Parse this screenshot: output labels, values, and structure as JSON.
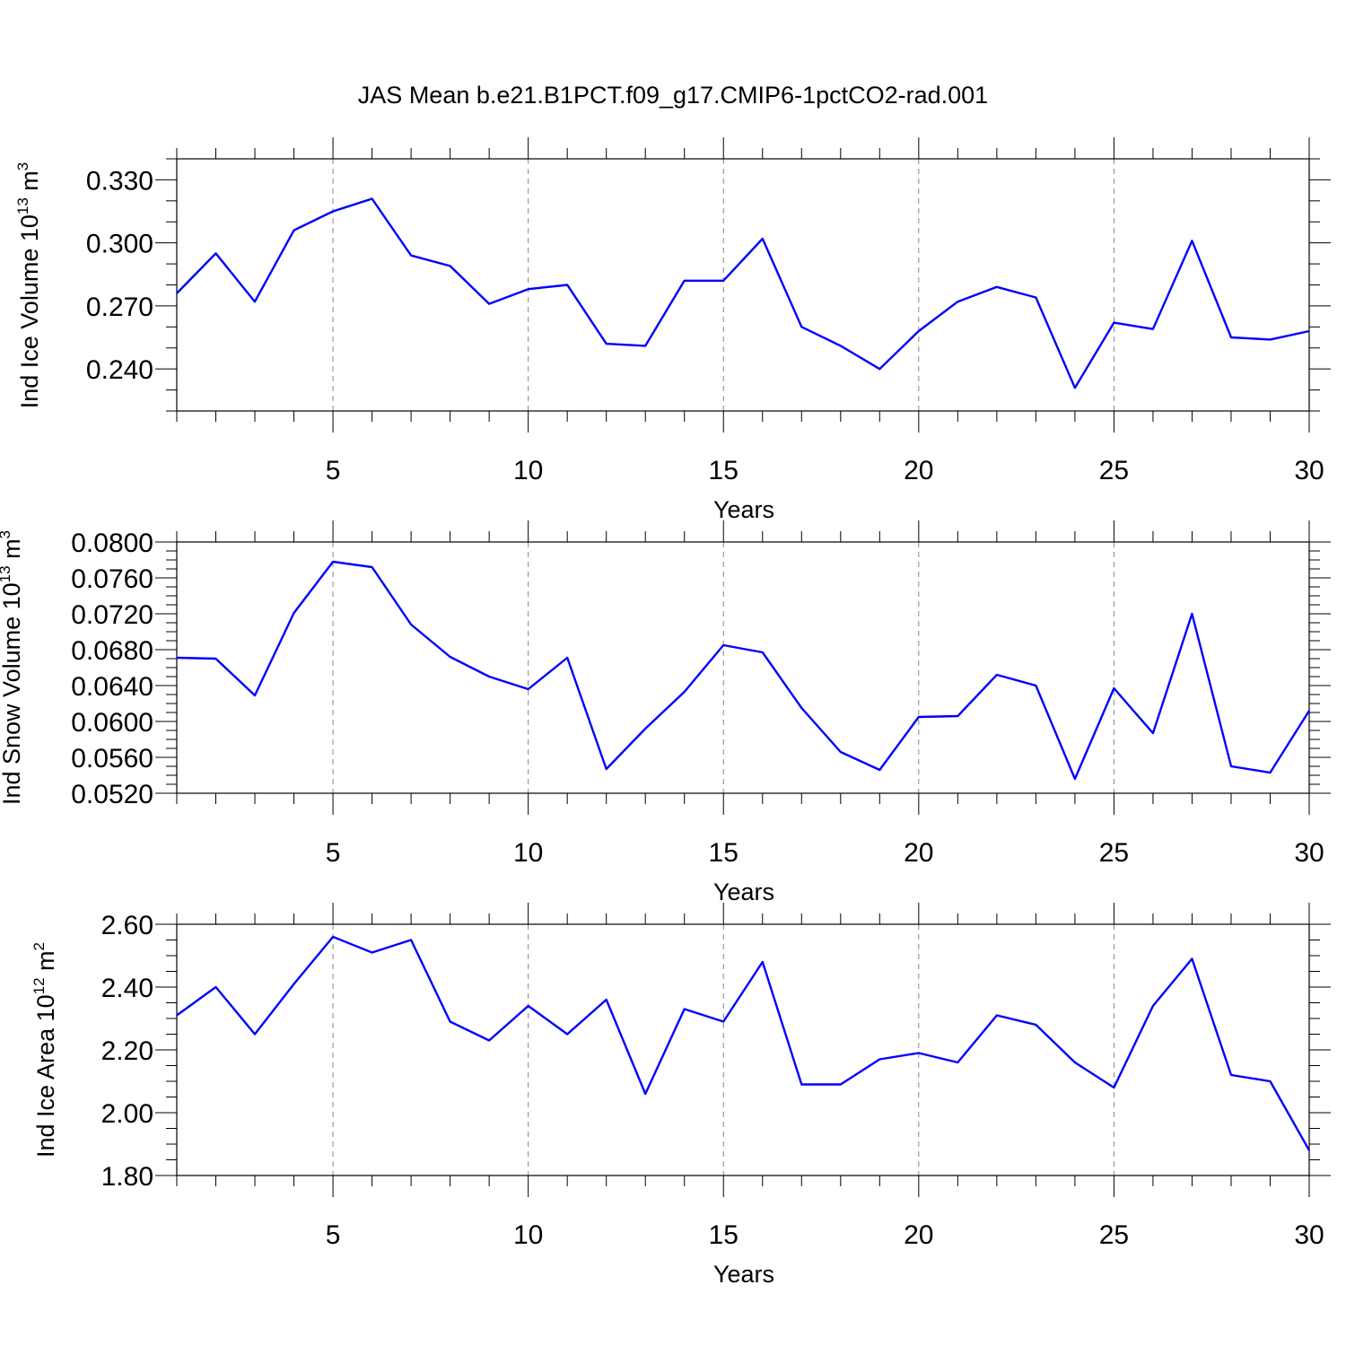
{
  "title": "JAS Mean b.e21.B1PCT.f09_g17.CMIP6-1pctCO2-rad.001",
  "chart_data": [
    {
      "type": "line",
      "title": "JAS Mean b.e21.B1PCT.f09_g17.CMIP6-1pctCO2-rad.001",
      "xlabel": "Years",
      "ylabel_main": "Ind Ice Volume 10",
      "ylabel_exp": "13",
      "ylabel_unit": "m",
      "ylabel_unit_exp": "3",
      "xlim": [
        1,
        30
      ],
      "ylim": [
        0.22,
        0.34
      ],
      "x_ticks": [
        5,
        10,
        15,
        20,
        25,
        30
      ],
      "y_ticks": [
        0.24,
        0.27,
        0.3,
        0.33
      ],
      "y_tick_labels": [
        "0.240",
        "0.270",
        "0.300",
        "0.330"
      ],
      "y_minor_step": 0.01,
      "grid": "vertical dashed",
      "x": [
        1,
        2,
        3,
        4,
        5,
        6,
        7,
        8,
        9,
        10,
        11,
        12,
        13,
        14,
        15,
        16,
        17,
        18,
        19,
        20,
        21,
        22,
        23,
        24,
        25,
        26,
        27,
        28,
        29,
        30
      ],
      "series": [
        {
          "color": "#0000ff",
          "values": [
            0.276,
            0.295,
            0.272,
            0.306,
            0.315,
            0.321,
            0.294,
            0.289,
            0.271,
            0.278,
            0.28,
            0.252,
            0.251,
            0.282,
            0.282,
            0.302,
            0.26,
            0.251,
            0.24,
            0.258,
            0.272,
            0.279,
            0.274,
            0.231,
            0.262,
            0.259,
            0.301,
            0.255,
            0.254,
            0.258
          ]
        }
      ]
    },
    {
      "type": "line",
      "xlabel": "Years",
      "ylabel_main": "Ind Snow Volume 10",
      "ylabel_exp": "13",
      "ylabel_unit": "m",
      "ylabel_unit_exp": "3",
      "xlim": [
        1,
        30
      ],
      "ylim": [
        0.052,
        0.08
      ],
      "x_ticks": [
        5,
        10,
        15,
        20,
        25,
        30
      ],
      "y_ticks": [
        0.052,
        0.056,
        0.06,
        0.064,
        0.068,
        0.072,
        0.076,
        0.08
      ],
      "y_tick_labels": [
        "0.0520",
        "0.0560",
        "0.0600",
        "0.0640",
        "0.0680",
        "0.0720",
        "0.0760",
        "0.0800"
      ],
      "y_minor_step": 0.001,
      "grid": "vertical dashed",
      "x": [
        1,
        2,
        3,
        4,
        5,
        6,
        7,
        8,
        9,
        10,
        11,
        12,
        13,
        14,
        15,
        16,
        17,
        18,
        19,
        20,
        21,
        22,
        23,
        24,
        25,
        26,
        27,
        28,
        29,
        30
      ],
      "series": [
        {
          "color": "#0000ff",
          "values": [
            0.0671,
            0.067,
            0.0629,
            0.0721,
            0.0778,
            0.0772,
            0.0708,
            0.0672,
            0.065,
            0.0636,
            0.0671,
            0.0547,
            0.0592,
            0.0633,
            0.0685,
            0.0677,
            0.0615,
            0.0566,
            0.0546,
            0.0605,
            0.0606,
            0.0652,
            0.064,
            0.0536,
            0.0637,
            0.0587,
            0.072,
            0.055,
            0.0543,
            0.0612
          ]
        }
      ]
    },
    {
      "type": "line",
      "xlabel": "Years",
      "ylabel_main": "Ind Ice Area 10",
      "ylabel_exp": "12",
      "ylabel_unit": "m",
      "ylabel_unit_exp": "2",
      "xlim": [
        1,
        30
      ],
      "ylim": [
        1.8,
        2.6
      ],
      "x_ticks": [
        5,
        10,
        15,
        20,
        25,
        30
      ],
      "y_ticks": [
        1.8,
        2.0,
        2.2,
        2.4,
        2.6
      ],
      "y_tick_labels": [
        "1.80",
        "2.00",
        "2.20",
        "2.40",
        "2.60"
      ],
      "y_minor_step": 0.05,
      "grid": "vertical dashed",
      "x": [
        1,
        2,
        3,
        4,
        5,
        6,
        7,
        8,
        9,
        10,
        11,
        12,
        13,
        14,
        15,
        16,
        17,
        18,
        19,
        20,
        21,
        22,
        23,
        24,
        25,
        26,
        27,
        28,
        29,
        30
      ],
      "series": [
        {
          "color": "#0000ff",
          "values": [
            2.31,
            2.4,
            2.25,
            2.41,
            2.56,
            2.51,
            2.55,
            2.29,
            2.23,
            2.34,
            2.25,
            2.36,
            2.06,
            2.33,
            2.29,
            2.48,
            2.09,
            2.09,
            2.17,
            2.19,
            2.16,
            2.31,
            2.28,
            2.16,
            2.08,
            2.34,
            2.49,
            2.12,
            2.1,
            1.88
          ]
        }
      ]
    }
  ]
}
